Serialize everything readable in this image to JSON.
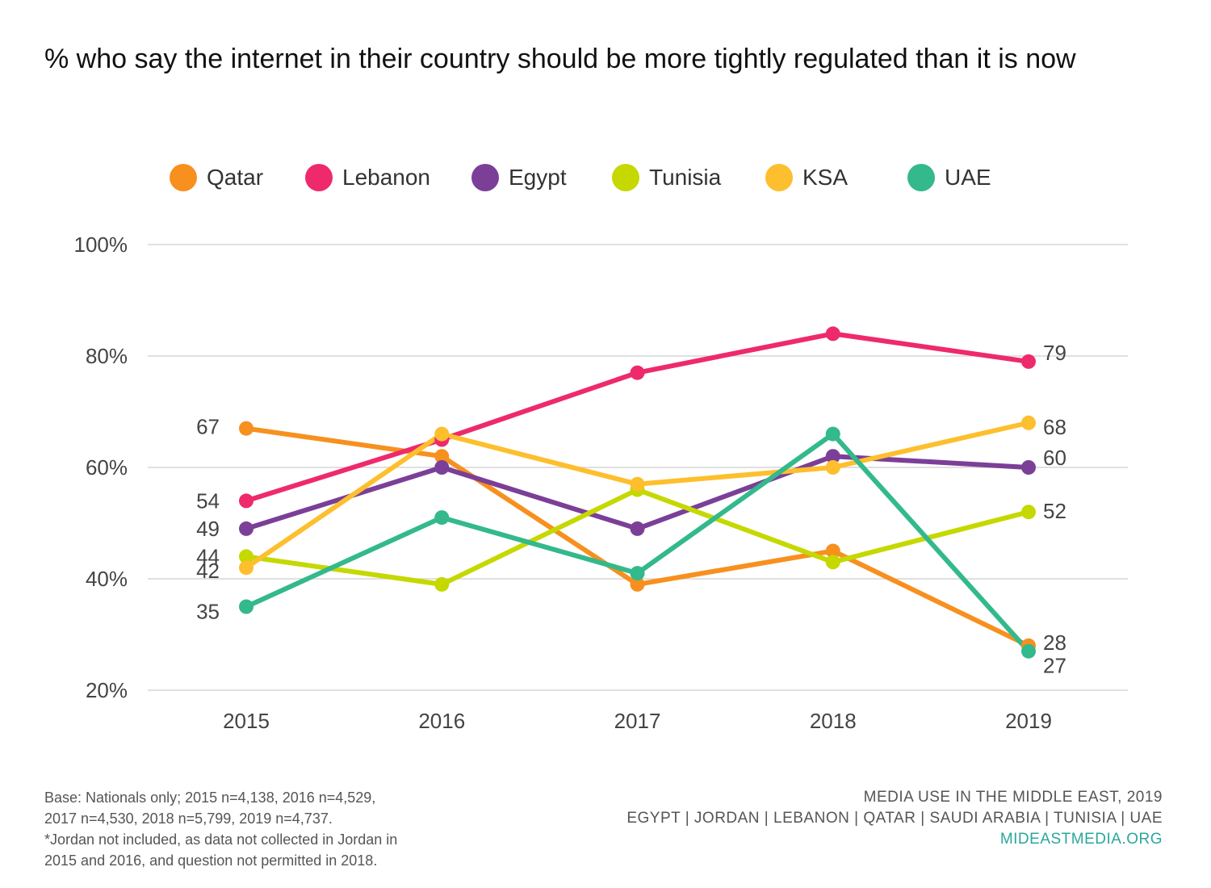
{
  "title": "% who say the internet in their country should be more tightly regulated than it is now",
  "legend": [
    {
      "label": "Qatar",
      "color": "#f7901e"
    },
    {
      "label": "Lebanon",
      "color": "#ee2a6c"
    },
    {
      "label": "Egypt",
      "color": "#7b3f98"
    },
    {
      "label": "Tunisia",
      "color": "#c5d800"
    },
    {
      "label": "KSA",
      "color": "#fdbf2d"
    },
    {
      "label": "UAE",
      "color": "#33b98b"
    }
  ],
  "chart_data": {
    "type": "line",
    "title": "% who say the internet in their country should be more tightly regulated than it is now",
    "x": [
      "2015",
      "2016",
      "2017",
      "2018",
      "2019"
    ],
    "ylim": [
      20,
      100
    ],
    "yticks": [
      "20%",
      "40%",
      "60%",
      "80%",
      "100%"
    ],
    "grid": true,
    "legend_position": "top",
    "series": [
      {
        "name": "Qatar",
        "color": "#f7901e",
        "values": [
          67,
          62,
          39,
          45,
          28
        ]
      },
      {
        "name": "Lebanon",
        "color": "#ee2a6c",
        "values": [
          54,
          65,
          77,
          84,
          79
        ]
      },
      {
        "name": "Egypt",
        "color": "#7b3f98",
        "values": [
          49,
          60,
          49,
          62,
          60
        ]
      },
      {
        "name": "Tunisia",
        "color": "#c5d800",
        "values": [
          44,
          39,
          56,
          43,
          52
        ]
      },
      {
        "name": "KSA",
        "color": "#fdbf2d",
        "values": [
          42,
          66,
          57,
          60,
          68
        ]
      },
      {
        "name": "UAE",
        "color": "#33b98b",
        "values": [
          35,
          51,
          41,
          66,
          27
        ]
      }
    ],
    "data_labels": {
      "2015": [
        "67",
        "54",
        "49",
        "44",
        "42",
        "35"
      ],
      "2019": [
        "79",
        "68",
        "60",
        "52",
        "28",
        "27"
      ]
    }
  },
  "footnote": {
    "lines": [
      "Base: Nationals only; 2015 n=4,138, 2016 n=4,529,",
      "2017 n=4,530, 2018 n=5,799, 2019 n=4,737.",
      "*Jordan not included, as data not collected in Jordan in",
      "2015 and 2016, and question not permitted in 2018."
    ]
  },
  "credit": {
    "line1": "MEDIA USE IN THE MIDDLE EAST, 2019",
    "line2": "EGYPT | JORDAN | LEBANON | QATAR | SAUDI ARABIA | TUNISIA | UAE",
    "site": "MIDEASTMEDIA.ORG"
  }
}
